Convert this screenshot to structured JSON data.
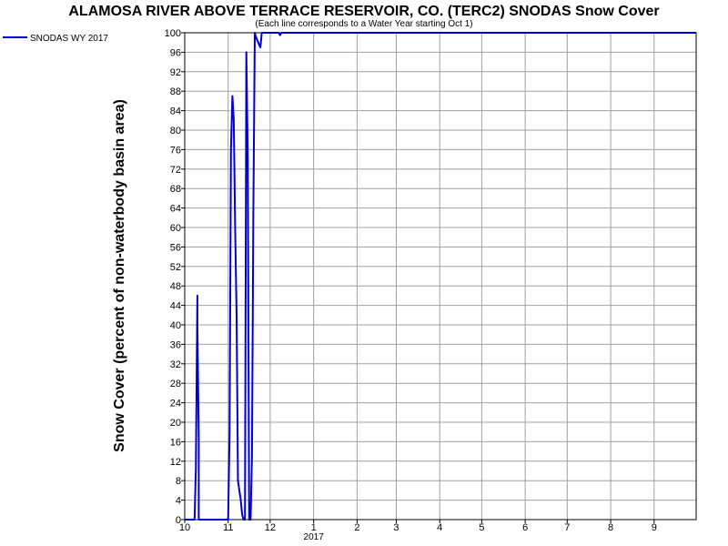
{
  "chart_data": {
    "type": "line",
    "title": "ALAMOSA RIVER ABOVE TERRACE RESERVOIR, CO. (TERC2) SNODAS Snow Cover",
    "subtitle": "(Each line corresponds to a Water Year starting Oct 1)",
    "ylabel": "Snow Cover (percent of non-waterbody basin area)",
    "xlabel": "",
    "ylim": [
      0,
      100
    ],
    "yticks": [
      0,
      4,
      8,
      12,
      16,
      20,
      24,
      28,
      32,
      36,
      40,
      44,
      48,
      52,
      56,
      60,
      64,
      68,
      72,
      76,
      80,
      84,
      88,
      92,
      96,
      100
    ],
    "xlim": [
      "2016-10-01",
      "2017-10-01"
    ],
    "xticks": [
      {
        "date": "2016-10-01",
        "label": "10"
      },
      {
        "date": "2016-11-01",
        "label": "11"
      },
      {
        "date": "2016-12-01",
        "label": "12"
      },
      {
        "date": "2017-01-01",
        "label": "1"
      },
      {
        "date": "2017-02-01",
        "label": "2"
      },
      {
        "date": "2017-03-01",
        "label": "3"
      },
      {
        "date": "2017-04-01",
        "label": "4"
      },
      {
        "date": "2017-05-01",
        "label": "5"
      },
      {
        "date": "2017-06-01",
        "label": "6"
      },
      {
        "date": "2017-07-01",
        "label": "7"
      },
      {
        "date": "2017-08-01",
        "label": "8"
      },
      {
        "date": "2017-09-01",
        "label": "9"
      }
    ],
    "year_label": {
      "date": "2017-01-01",
      "label": "2017"
    },
    "grid": true,
    "legend_position": "top-left",
    "series": [
      {
        "name": "SNODAS WY 2017",
        "color": "#0000cc",
        "points": [
          [
            "2016-10-01",
            0
          ],
          [
            "2016-10-08",
            0
          ],
          [
            "2016-10-09",
            11
          ],
          [
            "2016-10-09",
            12
          ],
          [
            "2016-10-10",
            46
          ],
          [
            "2016-10-10",
            40
          ],
          [
            "2016-10-11",
            17
          ],
          [
            "2016-10-11",
            0
          ],
          [
            "2016-10-12",
            0
          ],
          [
            "2016-11-01",
            0
          ],
          [
            "2016-11-02",
            18
          ],
          [
            "2016-11-03",
            76
          ],
          [
            "2016-11-04",
            87
          ],
          [
            "2016-11-05",
            82
          ],
          [
            "2016-11-06",
            60
          ],
          [
            "2016-11-07",
            42
          ],
          [
            "2016-11-08",
            8
          ],
          [
            "2016-11-09",
            6
          ],
          [
            "2016-11-10",
            4
          ],
          [
            "2016-11-11",
            1
          ],
          [
            "2016-11-12",
            0
          ],
          [
            "2016-11-13",
            0
          ],
          [
            "2016-11-14",
            96
          ],
          [
            "2016-11-15",
            74
          ],
          [
            "2016-11-16",
            0
          ],
          [
            "2016-11-17",
            0
          ],
          [
            "2016-11-18",
            13
          ],
          [
            "2016-11-19",
            63
          ],
          [
            "2016-11-20",
            100
          ],
          [
            "2016-11-21",
            99
          ],
          [
            "2016-11-24",
            97
          ],
          [
            "2016-11-25",
            100
          ],
          [
            "2016-12-07",
            100
          ],
          [
            "2016-12-08",
            99.5
          ],
          [
            "2016-12-09",
            100
          ],
          [
            "2017-10-01",
            100
          ]
        ]
      }
    ]
  }
}
